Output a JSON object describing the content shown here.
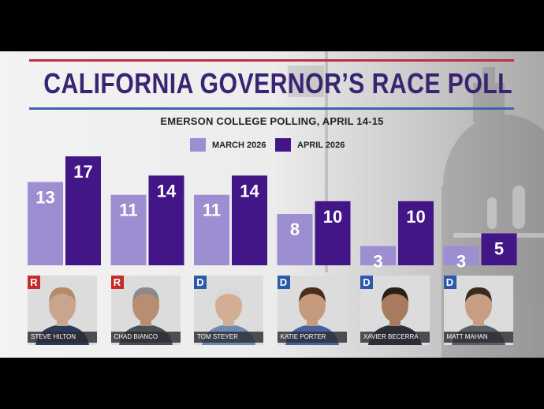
{
  "colors": {
    "march": "#9c8ed0",
    "april": "#421686",
    "title": "#3a2472",
    "rule_red": "#c0303a",
    "rule_blue": "#3c63b0",
    "republican": "#c42b2b",
    "democrat": "#2c5aa8"
  },
  "chart_data": {
    "type": "bar",
    "title": "CALIFORNIA GOVERNOR’S RACE POLL",
    "subtitle": "EMERSON COLLEGE POLLING, APRIL 14-15",
    "categories": [
      "STEVE HILTON",
      "CHAD BIANCO",
      "TOM STEYER",
      "KATIE PORTER",
      "XAVIER BECERRA",
      "MATT MAHAN"
    ],
    "series": [
      {
        "name": "MARCH 2026",
        "values": [
          13,
          11,
          11,
          8,
          3,
          3
        ]
      },
      {
        "name": "APRIL 2026",
        "values": [
          17,
          14,
          14,
          10,
          10,
          5
        ]
      }
    ],
    "ylim": [
      0,
      17
    ],
    "grid": false,
    "legend": "top-center",
    "data_labels": true
  },
  "candidates": [
    {
      "name": "STEVE HILTON",
      "party": "R",
      "photo_icon": "candidate-photo-icon"
    },
    {
      "name": "CHAD BIANCO",
      "party": "R",
      "photo_icon": "candidate-photo-icon"
    },
    {
      "name": "TOM STEYER",
      "party": "D",
      "photo_icon": "candidate-photo-icon"
    },
    {
      "name": "KATIE PORTER",
      "party": "D",
      "photo_icon": "candidate-photo-icon"
    },
    {
      "name": "XAVIER BECERRA",
      "party": "D",
      "photo_icon": "candidate-photo-icon"
    },
    {
      "name": "MATT MAHAN",
      "party": "D",
      "photo_icon": "candidate-photo-icon"
    }
  ]
}
